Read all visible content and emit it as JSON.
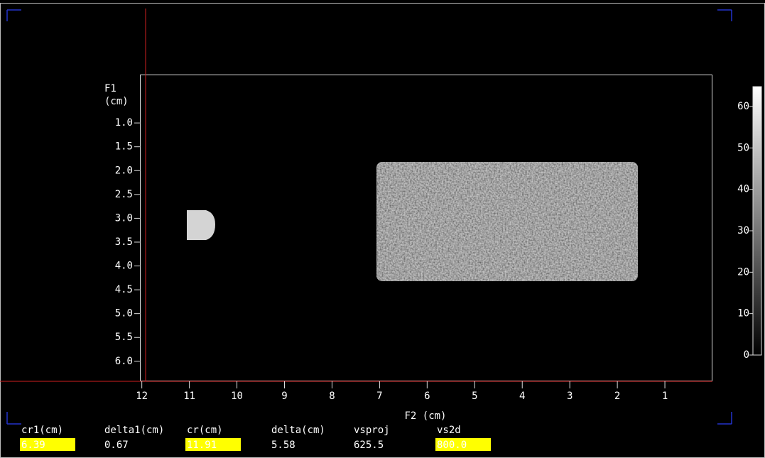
{
  "plot": {
    "y_axis_label": "F1",
    "y_axis_unit": "(cm)",
    "x_axis_label": "F2 (cm)",
    "ylim": [
      0,
      6.42
    ],
    "xlim": [
      12.04,
      0
    ],
    "yticks": [
      {
        "value": 1,
        "label": "1.0"
      },
      {
        "value": 1.5,
        "label": "1.5"
      },
      {
        "value": 2,
        "label": "2.0"
      },
      {
        "value": 2.5,
        "label": "2.5"
      },
      {
        "value": 3,
        "label": "3.0"
      },
      {
        "value": 3.5,
        "label": "3.5"
      },
      {
        "value": 4,
        "label": "4.0"
      },
      {
        "value": 4.5,
        "label": "4.5"
      },
      {
        "value": 5,
        "label": "5.0"
      },
      {
        "value": 5.5,
        "label": "5.5"
      },
      {
        "value": 6,
        "label": "6.0"
      }
    ],
    "xticks": [
      12,
      11,
      10,
      9,
      8,
      7,
      6,
      5,
      4,
      3,
      2,
      1
    ],
    "colorbar_lim": [
      0,
      64.8
    ],
    "colorbar_ticks": [
      0,
      10,
      20,
      30,
      40,
      50,
      60
    ]
  },
  "fields": [
    {
      "label": "cr1(cm)",
      "value": "6.39",
      "highlighted": true
    },
    {
      "label": "delta1(cm)",
      "value": "0.67",
      "highlighted": false
    },
    {
      "label": "cr(cm)",
      "value": "11.91",
      "highlighted": true
    },
    {
      "label": "delta(cm)",
      "value": "5.58",
      "highlighted": false
    },
    {
      "label": "vsproj",
      "value": "625.5",
      "highlighted": false
    },
    {
      "label": "vs2d",
      "value": "800.0",
      "highlighted": true
    }
  ]
}
